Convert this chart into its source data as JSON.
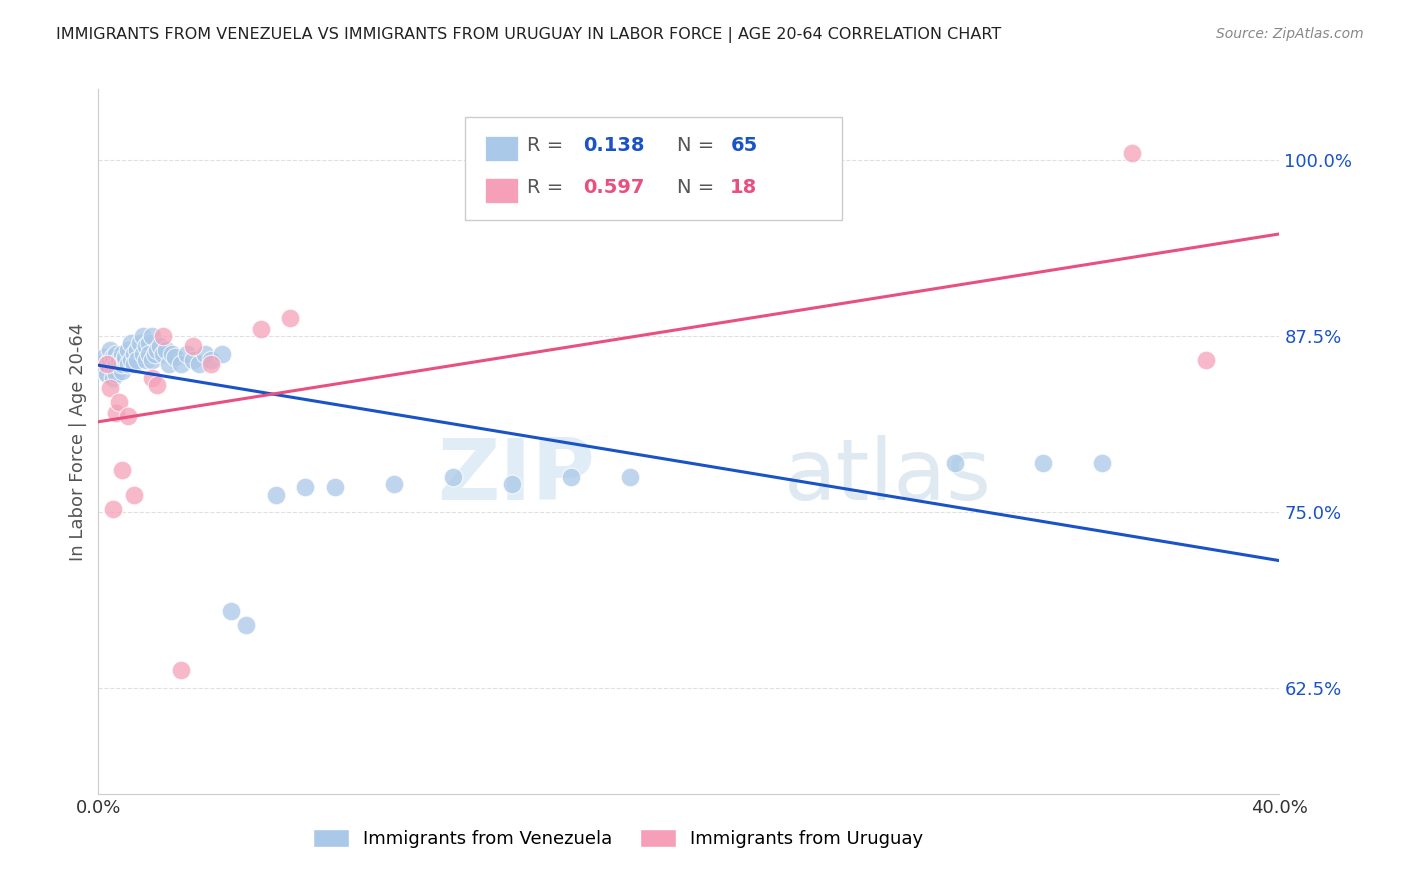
{
  "title": "IMMIGRANTS FROM VENEZUELA VS IMMIGRANTS FROM URUGUAY IN LABOR FORCE | AGE 20-64 CORRELATION CHART",
  "source": "Source: ZipAtlas.com",
  "ylabel": "In Labor Force | Age 20-64",
  "xlim": [
    0.0,
    0.4
  ],
  "ylim": [
    0.55,
    1.05
  ],
  "yticks": [
    0.625,
    0.75,
    0.875,
    1.0
  ],
  "ytick_labels": [
    "62.5%",
    "75.0%",
    "87.5%",
    "100.0%"
  ],
  "xticks": [
    0.0,
    0.08,
    0.16,
    0.24,
    0.32,
    0.4
  ],
  "xtick_labels": [
    "0.0%",
    "",
    "",
    "",
    "",
    "40.0%"
  ],
  "venezuela_color": "#aac8e8",
  "uruguay_color": "#f5a0b8",
  "trend_venezuela_color": "#1a52c8",
  "trend_uruguay_color": "#e85080",
  "R_venezuela": 0.138,
  "N_venezuela": 65,
  "R_uruguay": 0.597,
  "N_uruguay": 18,
  "venezuela_x": [
    0.001,
    0.002,
    0.002,
    0.003,
    0.003,
    0.004,
    0.004,
    0.005,
    0.005,
    0.005,
    0.006,
    0.006,
    0.006,
    0.007,
    0.007,
    0.008,
    0.008,
    0.008,
    0.009,
    0.009,
    0.01,
    0.01,
    0.011,
    0.011,
    0.012,
    0.012,
    0.013,
    0.013,
    0.014,
    0.015,
    0.015,
    0.016,
    0.016,
    0.017,
    0.017,
    0.018,
    0.018,
    0.019,
    0.02,
    0.021,
    0.022,
    0.023,
    0.024,
    0.025,
    0.026,
    0.028,
    0.03,
    0.032,
    0.034,
    0.036,
    0.038,
    0.042,
    0.045,
    0.05,
    0.06,
    0.07,
    0.08,
    0.1,
    0.12,
    0.14,
    0.16,
    0.18,
    0.29,
    0.32,
    0.34
  ],
  "venezuela_y": [
    0.855,
    0.85,
    0.86,
    0.855,
    0.848,
    0.858,
    0.865,
    0.852,
    0.86,
    0.845,
    0.855,
    0.862,
    0.848,
    0.855,
    0.858,
    0.85,
    0.862,
    0.855,
    0.858,
    0.86,
    0.865,
    0.855,
    0.87,
    0.858,
    0.862,
    0.855,
    0.865,
    0.858,
    0.87,
    0.875,
    0.862,
    0.868,
    0.858,
    0.87,
    0.862,
    0.875,
    0.858,
    0.862,
    0.865,
    0.868,
    0.862,
    0.865,
    0.855,
    0.862,
    0.86,
    0.855,
    0.862,
    0.858,
    0.855,
    0.862,
    0.858,
    0.862,
    0.68,
    0.67,
    0.762,
    0.768,
    0.768,
    0.77,
    0.775,
    0.77,
    0.775,
    0.775,
    0.785,
    0.785,
    0.785
  ],
  "uruguay_x": [
    0.003,
    0.004,
    0.005,
    0.006,
    0.007,
    0.008,
    0.01,
    0.012,
    0.018,
    0.02,
    0.022,
    0.028,
    0.032,
    0.038,
    0.055,
    0.065,
    0.35,
    0.375
  ],
  "uruguay_y": [
    0.855,
    0.838,
    0.752,
    0.82,
    0.828,
    0.78,
    0.818,
    0.762,
    0.845,
    0.84,
    0.875,
    0.638,
    0.868,
    0.855,
    0.88,
    0.888,
    1.005,
    0.858
  ],
  "watermark_zip": "ZIP",
  "watermark_atlas": "atlas",
  "background_color": "#ffffff",
  "grid_color": "#e0e0e0",
  "tick_color": "#1a52c8"
}
